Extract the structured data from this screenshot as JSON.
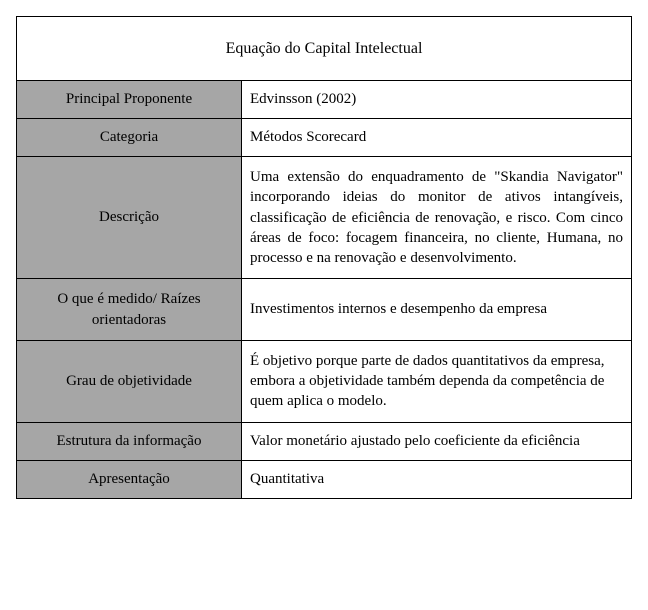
{
  "table": {
    "title": "Equação do Capital Intelectual",
    "label_bg": "#a6a6a6",
    "value_bg": "#ffffff",
    "border_color": "#000000",
    "font_family": "Times New Roman",
    "rows": [
      {
        "label": "Principal Proponente",
        "value": "Edvinsson (2002)",
        "justify": false
      },
      {
        "label": "Categoria",
        "value": "Métodos Scorecard",
        "justify": false
      },
      {
        "label": "Descrição",
        "value": "Uma extensão do enquadramento de \"Skandia Navigator\" incorporando ideias do monitor de ativos intangíveis, classificação de eficiência de renovação, e risco. Com cinco áreas de foco: focagem financeira, no cliente, Humana, no processo e na renovação e desenvolvimento.",
        "justify": true
      },
      {
        "label": "O que é medido/ Raízes orientadoras",
        "value": "Investimentos internos e desempenho da empresa",
        "justify": false
      },
      {
        "label": "Grau de objetividade",
        "value": "É objetivo porque parte de dados quantitativos da empresa, embora a objetividade também dependa da competência de quem aplica o modelo.",
        "justify": false
      },
      {
        "label": "Estrutura da informação",
        "value": "Valor monetário ajustado pelo coeficiente da eficiência",
        "justify": false
      },
      {
        "label": "Apresentação",
        "value": "Quantitativa",
        "justify": false
      }
    ]
  }
}
